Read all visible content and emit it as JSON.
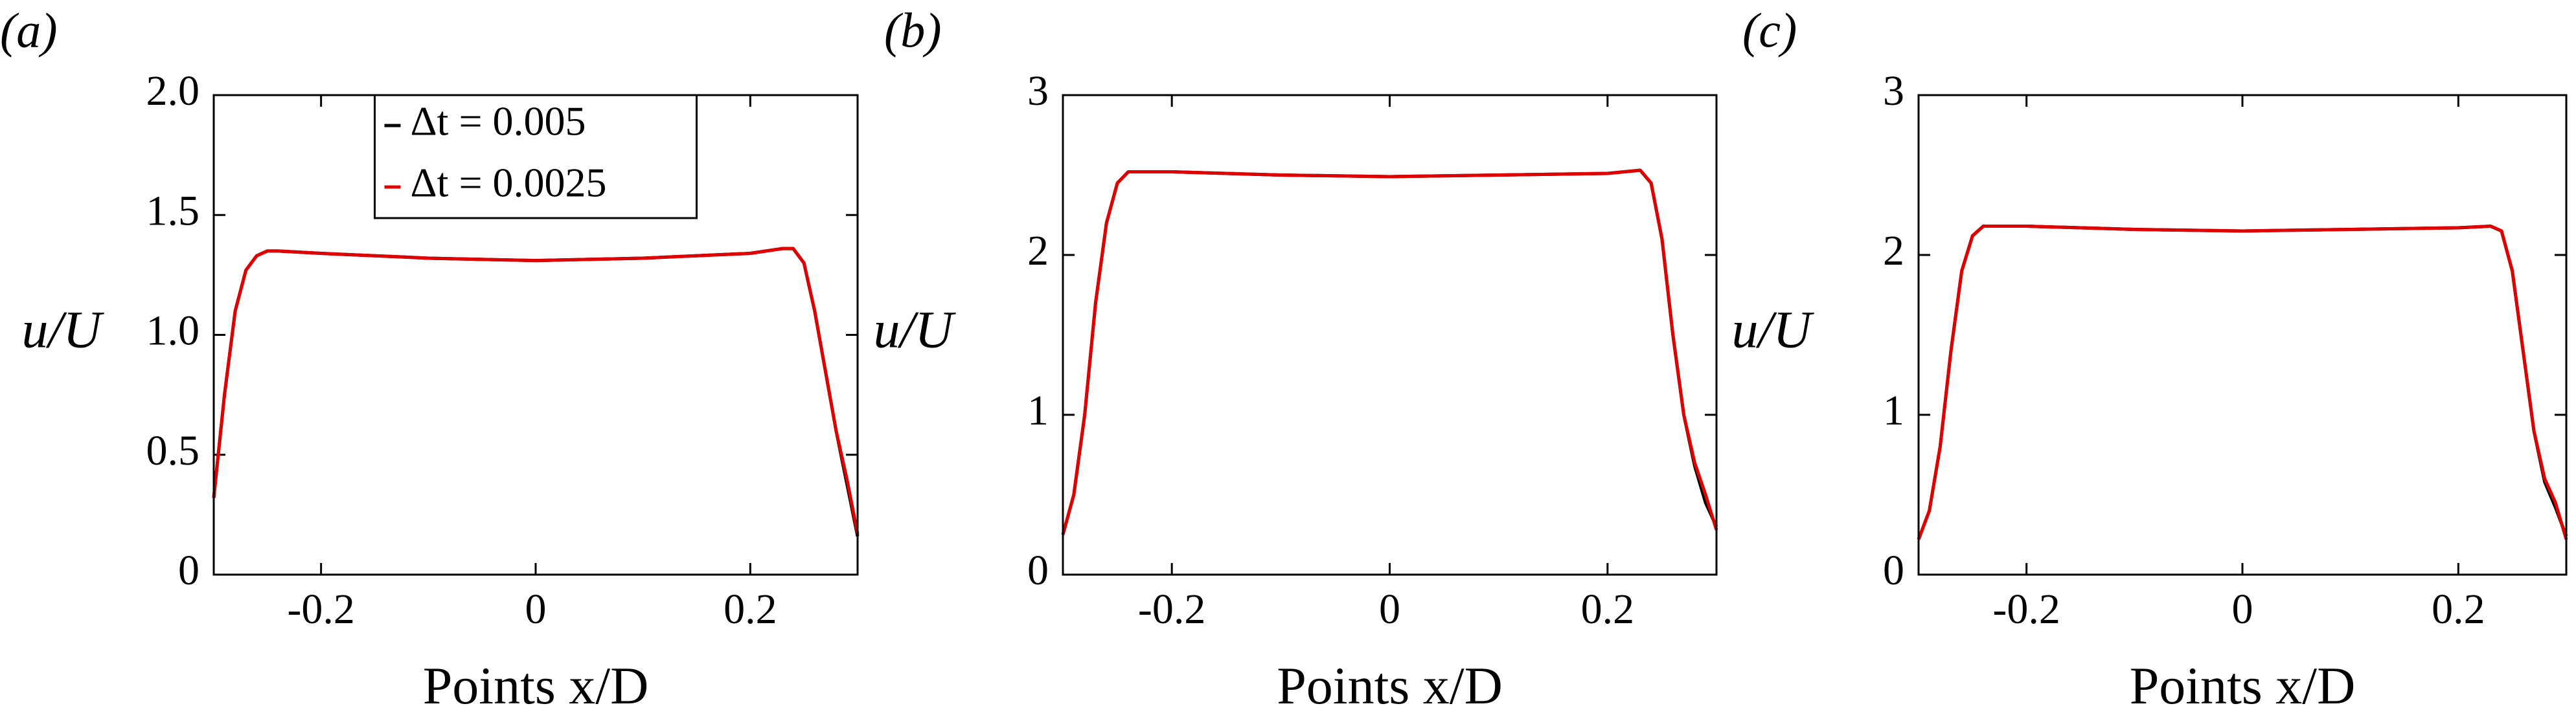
{
  "chart_data": [
    {
      "type": "line",
      "label": "(a)",
      "ylabel": "u/U",
      "xlabel": "Points x/D",
      "x": [
        -0.3,
        -0.29,
        -0.28,
        -0.27,
        -0.26,
        -0.25,
        -0.24,
        -0.2,
        -0.1,
        0,
        0.1,
        0.2,
        0.23,
        0.24,
        0.25,
        0.26,
        0.27,
        0.28,
        0.29,
        0.3
      ],
      "series": [
        {
          "name": "Δt = 0.005",
          "color": "#000000",
          "values": [
            0.32,
            0.75,
            1.1,
            1.27,
            1.33,
            1.35,
            1.35,
            1.34,
            1.32,
            1.31,
            1.32,
            1.34,
            1.36,
            1.36,
            1.3,
            1.1,
            0.85,
            0.6,
            0.38,
            0.16
          ]
        },
        {
          "name": "Δt = 0.0025",
          "color": "#e00000",
          "values": [
            0.32,
            0.75,
            1.1,
            1.27,
            1.33,
            1.35,
            1.35,
            1.34,
            1.32,
            1.31,
            1.32,
            1.34,
            1.36,
            1.36,
            1.3,
            1.1,
            0.85,
            0.6,
            0.4,
            0.17
          ]
        }
      ],
      "xlim": [
        -0.3,
        0.3
      ],
      "xticks": [
        -0.2,
        0,
        0.2
      ],
      "ylim": [
        0,
        2
      ],
      "yticks": [
        0,
        0.5,
        {
          "value": 1,
          "label": "1.0"
        },
        1.5,
        {
          "value": 2,
          "label": "2.0"
        }
      ],
      "legend": "upper center"
    },
    {
      "type": "line",
      "label": "(b)",
      "ylabel": "u/U",
      "xlabel": "Points x/D",
      "x": [
        -0.3,
        -0.29,
        -0.28,
        -0.27,
        -0.26,
        -0.25,
        -0.24,
        -0.2,
        -0.1,
        0,
        0.1,
        0.2,
        0.23,
        0.24,
        0.25,
        0.26,
        0.27,
        0.28,
        0.29,
        0.3
      ],
      "series": [
        {
          "color": "#000000",
          "values": [
            0.25,
            0.5,
            1.0,
            1.7,
            2.2,
            2.45,
            2.52,
            2.52,
            2.5,
            2.49,
            2.5,
            2.51,
            2.53,
            2.45,
            2.1,
            1.5,
            1.0,
            0.68,
            0.45,
            0.3
          ]
        },
        {
          "color": "#e00000",
          "values": [
            0.25,
            0.5,
            1.0,
            1.7,
            2.2,
            2.45,
            2.52,
            2.52,
            2.5,
            2.49,
            2.5,
            2.51,
            2.53,
            2.45,
            2.1,
            1.5,
            1.0,
            0.7,
            0.5,
            0.28
          ]
        }
      ],
      "xlim": [
        -0.3,
        0.3
      ],
      "xticks": [
        -0.2,
        0,
        0.2
      ],
      "ylim": [
        0,
        3
      ],
      "yticks": [
        0,
        1,
        2,
        3
      ]
    },
    {
      "type": "line",
      "label": "(c)",
      "ylabel": "u/U",
      "xlabel": "Points x/D",
      "x": [
        -0.3,
        -0.29,
        -0.28,
        -0.27,
        -0.26,
        -0.25,
        -0.24,
        -0.2,
        -0.1,
        0,
        0.1,
        0.2,
        0.23,
        0.24,
        0.25,
        0.26,
        0.27,
        0.28,
        0.29,
        0.3
      ],
      "series": [
        {
          "color": "#000000",
          "values": [
            0.22,
            0.4,
            0.8,
            1.4,
            1.9,
            2.12,
            2.18,
            2.18,
            2.16,
            2.15,
            2.16,
            2.17,
            2.18,
            2.15,
            1.9,
            1.4,
            0.9,
            0.58,
            0.42,
            0.24
          ]
        },
        {
          "color": "#e00000",
          "values": [
            0.22,
            0.4,
            0.8,
            1.4,
            1.9,
            2.12,
            2.18,
            2.18,
            2.16,
            2.15,
            2.16,
            2.17,
            2.18,
            2.15,
            1.9,
            1.4,
            0.9,
            0.6,
            0.45,
            0.22
          ]
        }
      ],
      "xlim": [
        -0.3,
        0.3
      ],
      "xticks": [
        -0.2,
        0,
        0.2
      ],
      "ylim": [
        0,
        3
      ],
      "yticks": [
        0,
        1,
        2,
        3
      ]
    }
  ]
}
